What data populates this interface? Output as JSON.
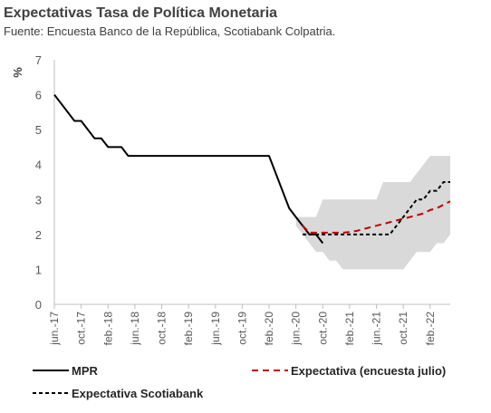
{
  "chart_data": {
    "type": "line",
    "title": "Expectativas Tasa de Política Monetaria",
    "subtitle": "Fuente: Encuesta Banco de la República, Scotiabank Colpatria.",
    "ylabel": "%",
    "xlabel": "",
    "ylim": [
      0,
      7
    ],
    "yticks": [
      "0",
      "1",
      "2",
      "3",
      "4",
      "5",
      "6",
      "7"
    ],
    "xlim": [
      "2017-06",
      "2022-05"
    ],
    "xticks": [
      "jun.-17",
      "oct.-17",
      "feb.-18",
      "jun.-18",
      "oct.-18",
      "feb.-19",
      "jun.-19",
      "oct.-19",
      "feb.-20",
      "jun.-20",
      "oct.-20",
      "feb.-21",
      "jun.-21",
      "oct.-21",
      "feb.-22"
    ],
    "grid": false,
    "legend_position": "bottom",
    "band": {
      "x": [
        "2020-06",
        "2020-07",
        "2020-08",
        "2020-09",
        "2020-10",
        "2020-11",
        "2020-12",
        "2021-01",
        "2021-02",
        "2021-03",
        "2021-04",
        "2021-05",
        "2021-06",
        "2021-07",
        "2021-08",
        "2021-09",
        "2021-10",
        "2021-11",
        "2021-12",
        "2022-01",
        "2022-02",
        "2022-03",
        "2022-04",
        "2022-05"
      ],
      "upper": [
        2.5,
        2.5,
        2.5,
        2.5,
        3.0,
        3.0,
        3.0,
        3.0,
        3.0,
        3.0,
        3.0,
        3.0,
        3.0,
        3.5,
        3.5,
        3.5,
        3.5,
        3.5,
        3.75,
        4.0,
        4.25,
        4.25,
        4.25,
        4.25
      ],
      "lower": [
        2.25,
        2.0,
        1.75,
        1.5,
        1.5,
        1.25,
        1.25,
        1.0,
        1.0,
        1.0,
        1.0,
        1.0,
        1.0,
        1.0,
        1.0,
        1.0,
        1.0,
        1.25,
        1.5,
        1.5,
        1.5,
        1.75,
        1.75,
        2.0
      ],
      "color": "#d9d9d9"
    },
    "series": [
      {
        "name": "MPR",
        "color": "#000000",
        "style": "solid",
        "x": [
          "2017-06",
          "2017-07",
          "2017-08",
          "2017-09",
          "2017-10",
          "2017-11",
          "2017-12",
          "2018-01",
          "2018-02",
          "2018-03",
          "2018-04",
          "2018-05",
          "2018-06",
          "2019-01",
          "2019-06",
          "2020-01",
          "2020-02",
          "2020-03",
          "2020-04",
          "2020-05",
          "2020-06",
          "2020-07",
          "2020-08",
          "2020-09",
          "2020-10"
        ],
        "y": [
          6.0,
          5.75,
          5.5,
          5.25,
          5.25,
          5.0,
          4.75,
          4.75,
          4.5,
          4.5,
          4.5,
          4.25,
          4.25,
          4.25,
          4.25,
          4.25,
          4.25,
          3.75,
          3.25,
          2.75,
          2.5,
          2.25,
          2.0,
          2.0,
          1.75
        ]
      },
      {
        "name": "Expectativa (encuesta julio)",
        "color": "#c00000",
        "style": "dashed",
        "x": [
          "2020-07",
          "2020-08",
          "2020-09",
          "2020-10",
          "2020-11",
          "2020-12",
          "2021-01",
          "2021-02",
          "2021-03",
          "2021-04",
          "2021-05",
          "2021-06",
          "2021-07",
          "2021-08",
          "2021-09",
          "2021-10",
          "2021-11",
          "2021-12",
          "2022-01",
          "2022-02",
          "2022-03",
          "2022-04",
          "2022-05"
        ],
        "y": [
          2.25,
          2.05,
          2.05,
          2.05,
          2.05,
          2.05,
          2.05,
          2.07,
          2.1,
          2.15,
          2.2,
          2.25,
          2.3,
          2.35,
          2.4,
          2.45,
          2.5,
          2.55,
          2.6,
          2.7,
          2.75,
          2.85,
          2.95
        ]
      },
      {
        "name": "Expectativa Scotiabank",
        "color": "#000000",
        "style": "dashed",
        "x": [
          "2020-07",
          "2020-08",
          "2020-09",
          "2020-10",
          "2020-11",
          "2020-12",
          "2021-01",
          "2021-02",
          "2021-03",
          "2021-04",
          "2021-05",
          "2021-06",
          "2021-07",
          "2021-08",
          "2021-09",
          "2021-10",
          "2021-11",
          "2021-12",
          "2022-01",
          "2022-02",
          "2022-03",
          "2022-04",
          "2022-05"
        ],
        "y": [
          2.0,
          2.0,
          2.0,
          2.0,
          2.0,
          2.0,
          2.0,
          2.0,
          2.0,
          2.0,
          2.0,
          2.0,
          2.0,
          2.0,
          2.25,
          2.5,
          2.75,
          3.0,
          3.0,
          3.25,
          3.25,
          3.5,
          3.5
        ]
      }
    ]
  }
}
